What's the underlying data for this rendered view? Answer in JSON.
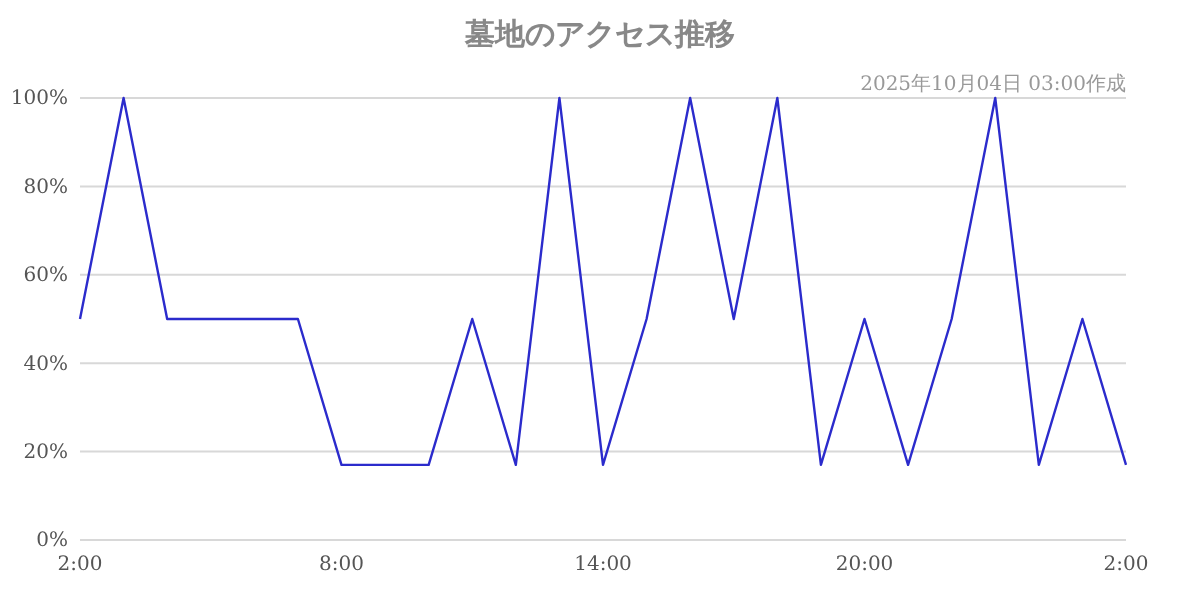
{
  "chart_data": {
    "type": "line",
    "title": "墓地のアクセス推移",
    "subtitle": "2025年10月04日 03:00作成",
    "x": [
      "2025-10-03T02:00",
      "2025-10-03T03:00",
      "2025-10-03T04:00",
      "2025-10-03T05:00",
      "2025-10-03T06:00",
      "2025-10-03T07:00",
      "2025-10-03T08:00",
      "2025-10-03T09:00",
      "2025-10-03T10:00",
      "2025-10-03T11:00",
      "2025-10-03T12:00",
      "2025-10-03T13:00",
      "2025-10-03T14:00",
      "2025-10-03T15:00",
      "2025-10-03T16:00",
      "2025-10-03T17:00",
      "2025-10-03T18:00",
      "2025-10-03T19:00",
      "2025-10-03T20:00",
      "2025-10-03T21:00",
      "2025-10-03T22:00",
      "2025-10-03T23:00",
      "2025-10-04T00:00",
      "2025-10-04T01:00",
      "2025-10-04T02:00"
    ],
    "series": [
      {
        "color": "#2b2bcc",
        "values": [
          50,
          100,
          50,
          50,
          50,
          50,
          17,
          17,
          17,
          50,
          17,
          100,
          17,
          50,
          100,
          50,
          100,
          17,
          50,
          17,
          50,
          100,
          17,
          50,
          17
        ]
      }
    ],
    "xlim": [
      "2025-10-03T02:00",
      "2025-10-04T02:00"
    ],
    "xticks": [
      {
        "value": "2025-10-03T02:00",
        "label": "2:00"
      },
      {
        "value": "2025-10-03T08:00",
        "label": "8:00"
      },
      {
        "value": "2025-10-03T14:00",
        "label": "14:00"
      },
      {
        "value": "2025-10-03T20:00",
        "label": "20:00"
      },
      {
        "value": "2025-10-04T02:00",
        "label": "2:00"
      }
    ],
    "ylim": [
      0,
      100
    ],
    "yticks": [
      {
        "value": 0,
        "label": "0%"
      },
      {
        "value": 20,
        "label": "20%"
      },
      {
        "value": 40,
        "label": "40%"
      },
      {
        "value": 60,
        "label": "60%"
      },
      {
        "value": 80,
        "label": "80%"
      },
      {
        "value": 100,
        "label": "100%"
      }
    ],
    "grid": "y",
    "marker": "none",
    "line_style": "solid"
  }
}
